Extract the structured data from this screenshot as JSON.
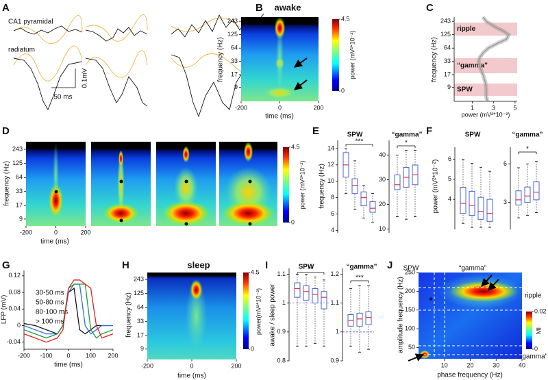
{
  "chart_data": [
    {
      "type": "traces",
      "panel": "A",
      "labels": [
        "CA1 pyramidal",
        "radiatum"
      ],
      "scale_x": "50 ms",
      "scale_y": "0.1mV"
    },
    {
      "type": "heatmap",
      "panel": "B",
      "title": "awake",
      "xlabel": "time (ms)",
      "ylabel": "frequency (Hz)",
      "xlim": [
        -200,
        200
      ],
      "xticks": [
        -200,
        0,
        200
      ],
      "ylim": [
        4.5,
        300
      ],
      "yticks": [
        9,
        17,
        33,
        64,
        125,
        243
      ],
      "log_y": true,
      "clim": [
        0,
        4.5
      ],
      "colorbar_ticks": [
        0,
        4.5
      ],
      "colorbar_label": "power (mV²*10⁻²)"
    },
    {
      "type": "profile",
      "panel": "C",
      "xlabel": "power (mV²*10⁻²)",
      "ylabel": "frequency (Hz)",
      "xlim": [
        -0.7,
        5.2
      ],
      "xticks": [
        1,
        3,
        5
      ],
      "ylim": [
        4.5,
        300
      ],
      "yticks": [
        9,
        17,
        33,
        64,
        125,
        243
      ],
      "log_y": true,
      "bands": [
        "ripple",
        "“gamma”",
        "SPW"
      ],
      "color": "#9a9a9a",
      "frequency": [
        300,
        243,
        180,
        150,
        125,
        100,
        80,
        64,
        50,
        40,
        33,
        25,
        17,
        12,
        9,
        6,
        4.5
      ],
      "power": [
        2.0,
        2.3,
        3.2,
        3.9,
        4.4,
        4.2,
        3.3,
        2.5,
        2.0,
        1.7,
        1.6,
        1.7,
        2.0,
        2.2,
        2.3,
        2.3,
        2.4
      ]
    },
    {
      "type": "heatmap",
      "panel": "D",
      "xlabel": "time (ms)",
      "ylabel": "frequency (Hz)",
      "xlim": [
        -200,
        200
      ],
      "xticks": [
        -200,
        0,
        200
      ],
      "ylim": [
        6.5,
        347
      ],
      "yticks": [
        9,
        17,
        33,
        64,
        125,
        243
      ],
      "log_y": true,
      "clim": [
        0,
        4.5
      ],
      "colorbar_ticks": [
        0,
        4.5
      ],
      "colorbar_label": "power (mV²*10⁻²)"
    },
    {
      "type": "box",
      "panel": "E",
      "ylabel": "frequency (Hz)",
      "box_color": "#4a62d8",
      "median_color": "#e03040",
      "groups": [
        {
          "name": "SPW",
          "ylim": [
            3.7,
            15
          ],
          "yticks": [
            4,
            6,
            8,
            10,
            12,
            14
          ],
          "significance": "***",
          "boxes": [
            [
              8.5,
              10.5,
              12,
              13.5,
              14
            ],
            [
              6.5,
              8.5,
              9.5,
              10.3,
              12.5
            ],
            [
              5.5,
              7,
              8,
              8.7,
              9.5
            ],
            [
              5,
              6.2,
              6.7,
              7.5,
              8.5
            ]
          ]
        },
        {
          "name": "“gamma”",
          "ylim": [
            8.5,
            46
          ],
          "yticks": [
            10,
            20,
            30,
            40
          ],
          "significance": "*",
          "boxes": [
            [
              15,
              26,
              28,
              32,
              40
            ],
            [
              14,
              27,
              31,
              35,
              42
            ],
            [
              15,
              28,
              32,
              36,
              42
            ]
          ]
        }
      ]
    },
    {
      "type": "box",
      "panel": "F",
      "ylabel": "power (mV²*10⁻²)",
      "box_color": "#4a62d8",
      "median_color": "#e03040",
      "groups": [
        {
          "name": "SPW",
          "ylim": [
            2.5,
            6.6
          ],
          "yticks": [
            4,
            5,
            6
          ],
          "boxes": [
            [
              2.8,
              3.3,
              3.8,
              4.6,
              6
            ],
            [
              2.6,
              3.2,
              3.7,
              4.4,
              5.8
            ],
            [
              2.6,
              3.0,
              3.4,
              4.1,
              5.6
            ],
            [
              2.6,
              2.9,
              3.3,
              4.0,
              5.4
            ]
          ]
        },
        {
          "name": "“gamma”",
          "ylim": [
            0.9,
            7.3
          ],
          "yticks": [
            3,
            6
          ],
          "significance": "*",
          "boxes": [
            [
              1.8,
              2.8,
              3.2,
              3.9,
              5.7
            ],
            [
              2.0,
              3.0,
              3.5,
              4.2,
              6.0
            ],
            [
              2.2,
              3.2,
              3.8,
              4.6,
              6.2
            ]
          ]
        }
      ]
    },
    {
      "type": "line",
      "panel": "G",
      "xlabel": "time (ms)",
      "ylabel": "LFP (mV)",
      "xlim": [
        -200,
        200
      ],
      "xticks": [
        -200,
        -100,
        0,
        100,
        200
      ],
      "ylim": [
        -0.057,
        0.133
      ],
      "yticks": [
        0.12,
        0.08,
        0.04,
        0,
        -0.04
      ],
      "x": [
        -200,
        -150,
        -100,
        -50,
        -25,
        0,
        25,
        50,
        75,
        100,
        125,
        150,
        200
      ],
      "series": [
        {
          "name": "30-50 ms",
          "color": "#111111",
          "values": [
            0.005,
            0.0,
            -0.01,
            -0.02,
            0.0,
            0.08,
            0.09,
            -0.01,
            -0.02,
            -0.01,
            0,
            0,
            0
          ]
        },
        {
          "name": "50-80 ms",
          "color": "#2f6fe0",
          "values": [
            0.0,
            -0.01,
            -0.02,
            -0.02,
            0.0,
            0.08,
            0.1,
            0.1,
            0.0,
            -0.02,
            -0.01,
            0,
            0
          ]
        },
        {
          "name": "80-100 ms",
          "color": "#1a9a3a",
          "values": [
            -0.01,
            -0.02,
            -0.03,
            -0.02,
            0.0,
            0.09,
            0.1,
            0.1,
            0.1,
            -0.01,
            -0.03,
            -0.02,
            -0.01
          ]
        },
        {
          "name": "> 100 ms",
          "color": "#e02020",
          "values": [
            -0.02,
            -0.03,
            -0.04,
            -0.03,
            -0.01,
            0.09,
            0.11,
            0.11,
            0.1,
            0.09,
            0.0,
            -0.03,
            -0.02
          ]
        }
      ]
    },
    {
      "type": "heatmap",
      "panel": "H",
      "title": "sleep",
      "xlabel": "time (ms)",
      "ylabel": "frequency (Hz)",
      "xlim": [
        -200,
        200
      ],
      "xticks": [
        -200,
        0,
        200
      ],
      "ylim": [
        5.5,
        337
      ],
      "yticks": [
        9,
        17,
        33,
        64,
        125,
        243
      ],
      "log_y": true,
      "clim": [
        0,
        4.5
      ],
      "colorbar_ticks": [
        0,
        4.5
      ],
      "colorbar_label": "power(mV²*10⁻²)"
    },
    {
      "type": "box",
      "panel": "I",
      "ylabel": "awake / sleep power",
      "box_color": "#4a62d8",
      "median_color": "#e03040",
      "groups": [
        {
          "name": "SPW",
          "ylim": [
            0.8,
            1.12
          ],
          "yticks": [
            0.8,
            0.9,
            1,
            1.1
          ],
          "significance": "**",
          "reference": 1,
          "boxes": [
            [
              0.85,
              1.02,
              1.05,
              1.07,
              1.1
            ],
            [
              0.85,
              1.01,
              1.04,
              1.06,
              1.1
            ],
            [
              0.86,
              1.0,
              1.03,
              1.05,
              1.09
            ],
            [
              0.85,
              0.98,
              1.02,
              1.04,
              1.08
            ]
          ]
        },
        {
          "name": "“gamma”",
          "ylim": [
            0.9,
            1.22
          ],
          "yticks": [
            0.9,
            1,
            1.1,
            1.2
          ],
          "significance": "***",
          "reference": 1,
          "boxes": [
            [
              0.95,
              1.02,
              1.04,
              1.06,
              1.15
            ],
            [
              0.93,
              1.02,
              1.045,
              1.065,
              1.16
            ],
            [
              0.94,
              1.025,
              1.05,
              1.07,
              1.16
            ]
          ]
        }
      ]
    },
    {
      "type": "heatmap",
      "panel": "J",
      "xlabel": "phase frequency (Hz)",
      "ylabel": "amplitude frequency (Hz)",
      "xlim": [
        0,
        40
      ],
      "xticks": [
        10,
        20,
        30,
        40
      ],
      "ylim": [
        20,
        250
      ],
      "yticks": [
        50,
        100,
        150,
        200,
        250
      ],
      "log_y": false,
      "clim": [
        0,
        0.02
      ],
      "colorbar_ticks": [
        0,
        0.02
      ],
      "colorbar_label": "MI",
      "annotations": [
        "SPW",
        "“gamma”",
        "ripple",
        "“gamma”"
      ]
    }
  ]
}
